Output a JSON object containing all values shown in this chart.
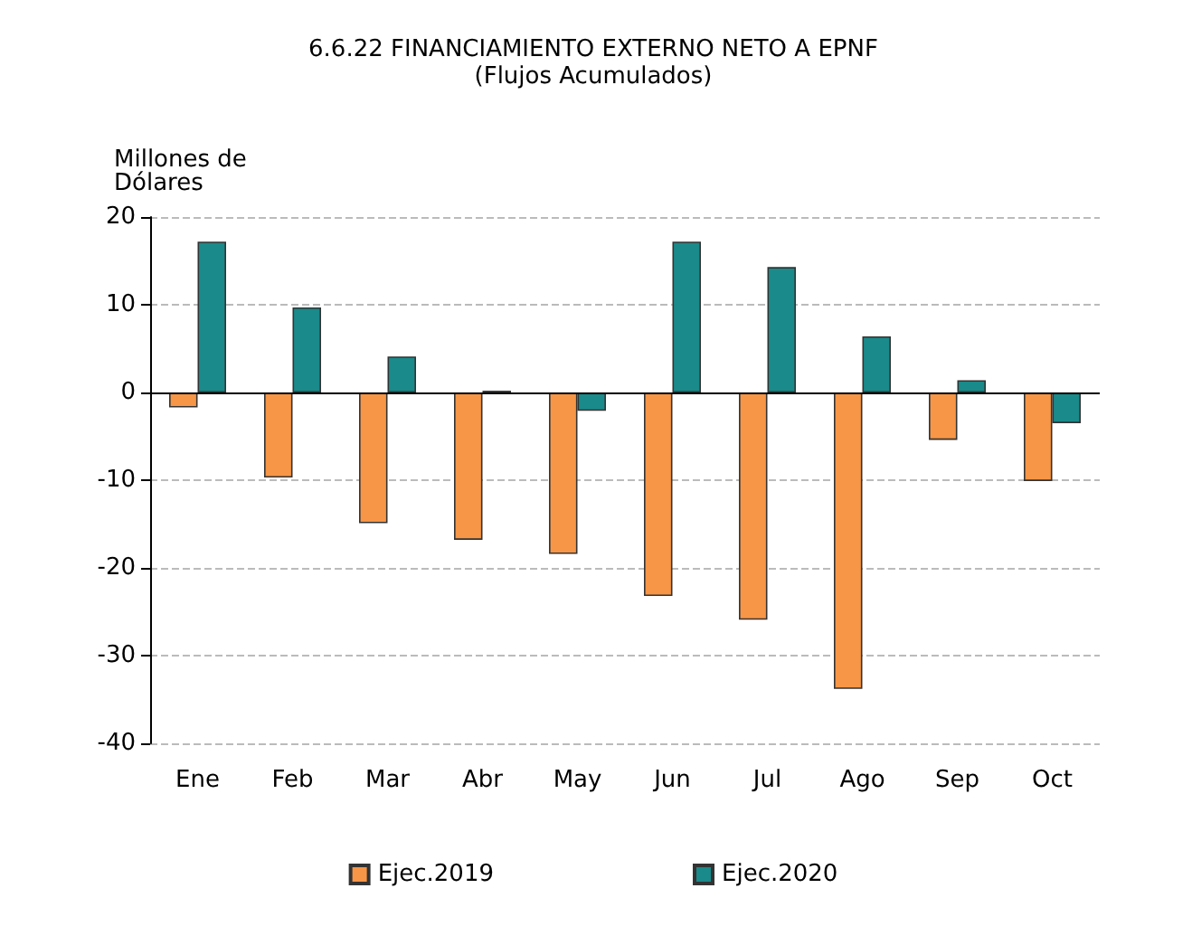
{
  "chart_data": {
    "type": "bar",
    "title": "6.6.22 FINANCIAMIENTO EXTERNO NETO A EPNF",
    "subtitle": "(Flujos Acumulados)",
    "ylabel": "Millones de\nDólares",
    "categories": [
      "Ene",
      "Feb",
      "Mar",
      "Abr",
      "May",
      "Jun",
      "Jul",
      "Ago",
      "Sep",
      "Oct"
    ],
    "series": [
      {
        "name": "Ejec.2019",
        "color": "#f79646",
        "values": [
          -1.7,
          -9.7,
          -14.9,
          -16.8,
          -18.4,
          -23.2,
          -25.9,
          -33.8,
          -5.4,
          -10.1
        ]
      },
      {
        "name": "Ejec.2020",
        "color": "#1a8a8a",
        "values": [
          17.2,
          9.7,
          4.1,
          0.2,
          -2.1,
          17.2,
          14.3,
          6.4,
          1.4,
          -3.5
        ]
      }
    ],
    "ylim": [
      -40,
      20
    ],
    "yticks": [
      -40,
      -30,
      -20,
      -10,
      0,
      10,
      20
    ],
    "grid": "y",
    "legend": "bottom"
  }
}
